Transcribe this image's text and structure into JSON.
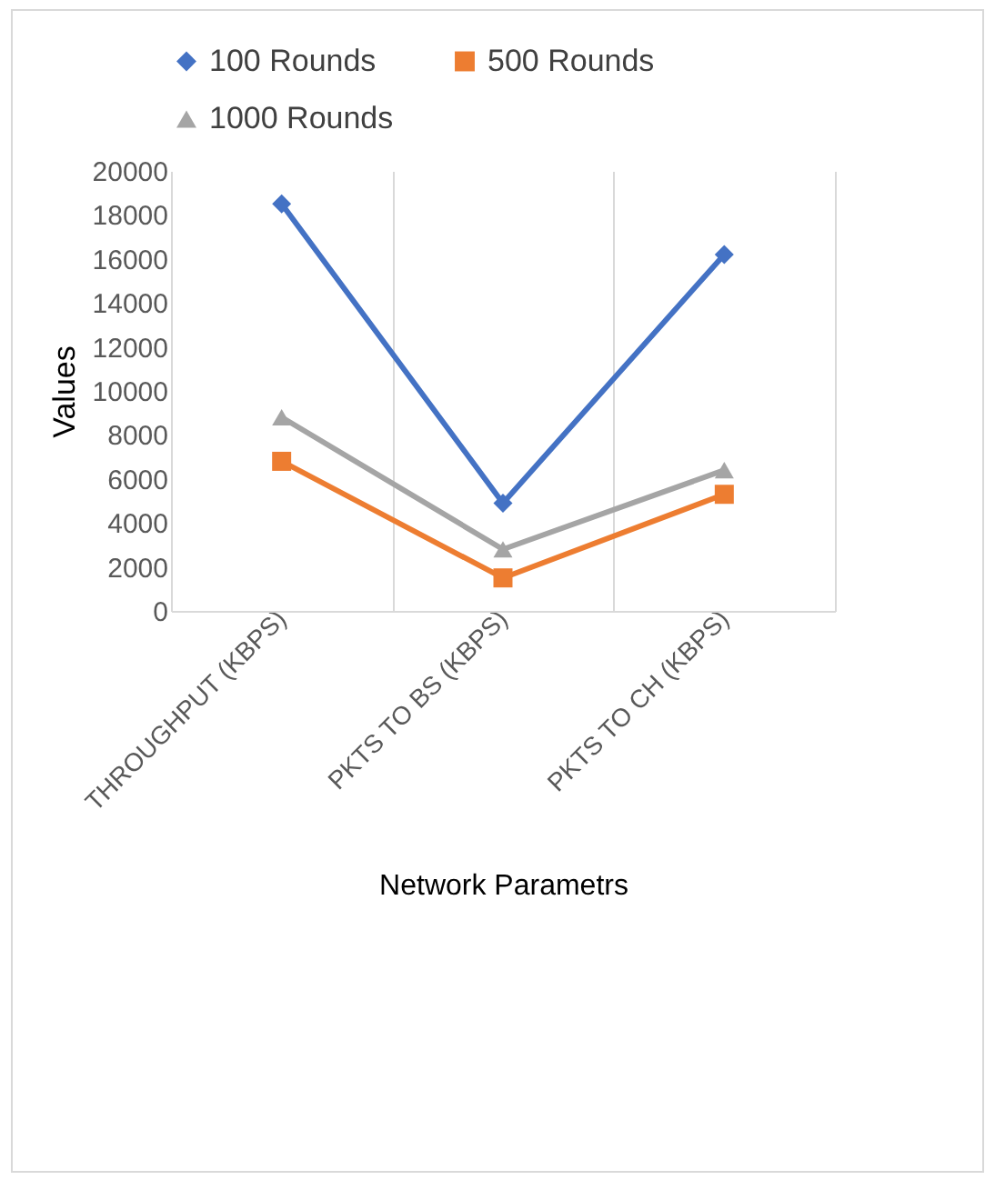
{
  "chart_data": {
    "type": "line",
    "xlabel": "Network Parametrs",
    "ylabel": "Values",
    "categories": [
      "THROUGHPUT (KBPS)",
      "PKTS TO BS (KBPS)",
      "PKTS TO CH (KBPS)"
    ],
    "series": [
      {
        "name": "100 Rounds",
        "color": "#4472c4",
        "marker": "diamond",
        "values": [
          18500,
          4900,
          16200
        ]
      },
      {
        "name": "500 Rounds",
        "color": "#ed7d31",
        "marker": "square",
        "values": [
          6800,
          1500,
          5300
        ]
      },
      {
        "name": "1000 Rounds",
        "color": "#a5a5a5",
        "marker": "triangle",
        "values": [
          8800,
          2800,
          6400
        ]
      }
    ],
    "ylim": [
      0,
      20000
    ],
    "yticks": [
      0,
      2000,
      4000,
      6000,
      8000,
      10000,
      12000,
      14000,
      16000,
      18000,
      20000
    ],
    "grid": "x",
    "legend": "top"
  }
}
